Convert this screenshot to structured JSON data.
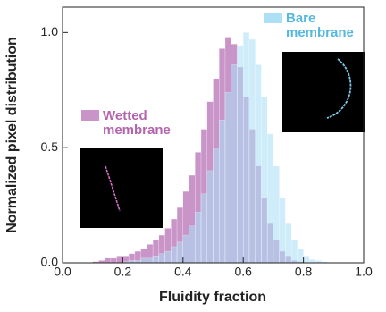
{
  "chart_data": {
    "type": "histogram",
    "x_label": "Fluidity fraction",
    "y_label": "Normalized pixel distribution",
    "bins": [
      0,
      0.02,
      0.04,
      0.06,
      0.08,
      0.1,
      0.12,
      0.14,
      0.16,
      0.18,
      0.2,
      0.22,
      0.24,
      0.26,
      0.28,
      0.3,
      0.32,
      0.34,
      0.36,
      0.38,
      0.4,
      0.42,
      0.44,
      0.46,
      0.48,
      0.5,
      0.52,
      0.54,
      0.56,
      0.58,
      0.6,
      0.62,
      0.64,
      0.66,
      0.68,
      0.7,
      0.72,
      0.74,
      0.76,
      0.78,
      0.8,
      0.82,
      0.84,
      0.86,
      0.88,
      0.9,
      0.92,
      0.94,
      0.96,
      0.98,
      1.0
    ],
    "series": [
      {
        "name": "Wetted membrane",
        "color": "#c994c7",
        "values": [
          0,
          0,
          0,
          0,
          0,
          0.005,
          0.01,
          0.02,
          0.02,
          0.03,
          0.03,
          0.04,
          0.05,
          0.06,
          0.08,
          0.1,
          0.12,
          0.15,
          0.19,
          0.24,
          0.31,
          0.38,
          0.48,
          0.58,
          0.7,
          0.8,
          0.93,
          0.98,
          0.95,
          0.85,
          0.72,
          0.58,
          0.42,
          0.28,
          0.17,
          0.1,
          0.05,
          0.03,
          0.01,
          0.005,
          0,
          0,
          0,
          0,
          0,
          0,
          0,
          0,
          0,
          0
        ]
      },
      {
        "name": "Bare membrane",
        "color": "#aee0f5",
        "values": [
          0,
          0,
          0,
          0,
          0,
          0,
          0,
          0,
          0,
          0,
          0.005,
          0.01,
          0.01,
          0.02,
          0.02,
          0.03,
          0.04,
          0.05,
          0.07,
          0.09,
          0.12,
          0.16,
          0.22,
          0.3,
          0.4,
          0.5,
          0.62,
          0.74,
          0.86,
          0.94,
          1.0,
          0.97,
          0.86,
          0.72,
          0.56,
          0.42,
          0.28,
          0.17,
          0.1,
          0.06,
          0.03,
          0.015,
          0.01,
          0.005,
          0,
          0,
          0,
          0,
          0,
          0
        ]
      }
    ],
    "xlim": [
      0,
      1.0
    ],
    "ylim": [
      0,
      1.11
    ],
    "xticks": [
      {
        "value": 0,
        "label": "0.0"
      },
      0.2,
      0.4,
      0.6,
      0.8,
      {
        "value": 1,
        "label": "1.0"
      }
    ],
    "yticks": [
      {
        "value": 0,
        "label": "0.0"
      },
      0.5,
      {
        "value": 1,
        "label": "1.0"
      }
    ]
  }
}
